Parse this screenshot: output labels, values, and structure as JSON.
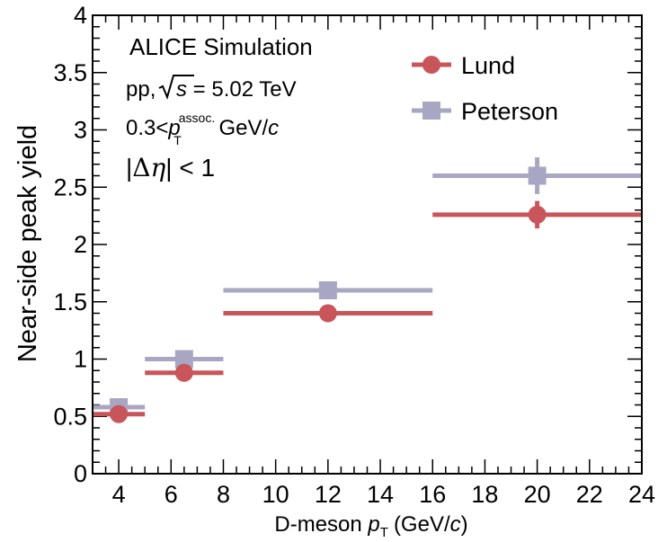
{
  "chart_data": {
    "type": "scatter",
    "xlabel_prefix": "D-meson ",
    "xlabel_var": "p",
    "xlabel_sub": "T",
    "xlabel_units": "(GeV/",
    "xlabel_units_var": "c",
    "xlabel_units_close": ")",
    "ylabel": "Near-side peak yield",
    "xlim": [
      3,
      24
    ],
    "ylim": [
      0,
      4
    ],
    "x_ticks": [
      4,
      6,
      8,
      10,
      12,
      14,
      16,
      18,
      20,
      22,
      24
    ],
    "x_tick_labels": [
      "4",
      "6",
      "8",
      "10",
      "12",
      "14",
      "16",
      "18",
      "20",
      "22",
      "24"
    ],
    "y_ticks": [
      0,
      0.5,
      1,
      1.5,
      2,
      2.5,
      3,
      3.5,
      4
    ],
    "y_tick_labels": [
      "0",
      "0.5",
      "1",
      "1.5",
      "2",
      "2.5",
      "3",
      "3.5",
      "4"
    ],
    "legend_position": "top-right",
    "series": [
      {
        "name": "Lund",
        "color": "#c8555a",
        "marker": "circle",
        "points": [
          {
            "x": 4,
            "xlow": 3,
            "xhigh": 5,
            "y": 0.52,
            "ylow": 0.5,
            "yhigh": 0.54
          },
          {
            "x": 6.5,
            "xlow": 5,
            "xhigh": 8,
            "y": 0.88,
            "ylow": 0.86,
            "yhigh": 0.9
          },
          {
            "x": 12,
            "xlow": 8,
            "xhigh": 16,
            "y": 1.4,
            "ylow": 1.38,
            "yhigh": 1.42
          },
          {
            "x": 20,
            "xlow": 16,
            "xhigh": 24,
            "y": 2.26,
            "ylow": 2.14,
            "yhigh": 2.38
          }
        ]
      },
      {
        "name": "Peterson",
        "color": "#a8a6c2",
        "marker": "square",
        "points": [
          {
            "x": 4,
            "xlow": 3,
            "xhigh": 5,
            "y": 0.58,
            "ylow": 0.56,
            "yhigh": 0.6
          },
          {
            "x": 6.5,
            "xlow": 5,
            "xhigh": 8,
            "y": 1.0,
            "ylow": 0.97,
            "yhigh": 1.03
          },
          {
            "x": 12,
            "xlow": 8,
            "xhigh": 16,
            "y": 1.6,
            "ylow": 1.58,
            "yhigh": 1.62
          },
          {
            "x": 20,
            "xlow": 16,
            "xhigh": 24,
            "y": 2.6,
            "ylow": 2.44,
            "yhigh": 2.76
          }
        ]
      }
    ],
    "annotations": {
      "title": "ALICE Simulation",
      "energy_prefix": "pp, ",
      "energy_var": "s",
      "energy_value": " = 5.02 TeV",
      "pt_cut_prefix": "0.3<",
      "pt_cut_var": "p",
      "pt_cut_sup": "assoc.",
      "pt_cut_sub": "T",
      "pt_cut_units": " GeV/",
      "pt_cut_units_var": "c",
      "eta_open": "|",
      "eta_delta": "Δ",
      "eta_var": "η",
      "eta_rest": "| < 1"
    }
  }
}
